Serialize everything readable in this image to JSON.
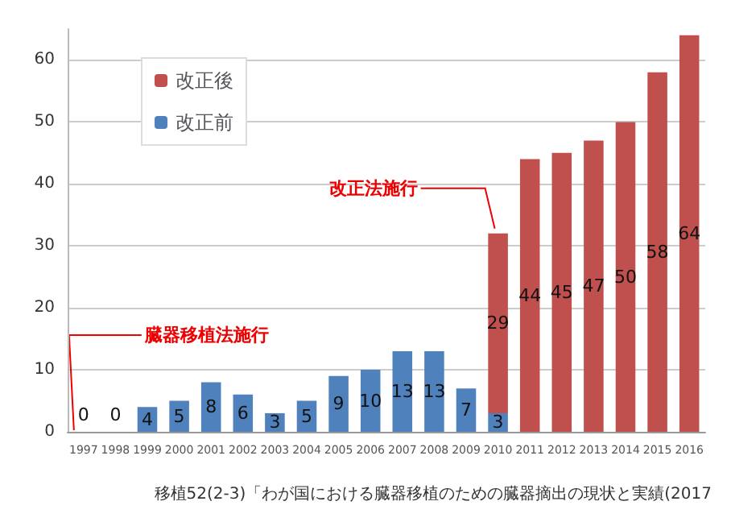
{
  "chart_data": {
    "type": "bar",
    "stacked": true,
    "categories": [
      "1997",
      "1998",
      "1999",
      "2000",
      "2001",
      "2002",
      "2003",
      "2004",
      "2005",
      "2006",
      "2007",
      "2008",
      "2009",
      "2010",
      "2011",
      "2012",
      "2013",
      "2014",
      "2015",
      "2016"
    ],
    "series": [
      {
        "name": "改正前",
        "color": "#4f81bd",
        "values": [
          0,
          0,
          4,
          5,
          8,
          6,
          3,
          5,
          9,
          10,
          13,
          13,
          7,
          3,
          0,
          0,
          0,
          0,
          0,
          0
        ],
        "value_labels": [
          "0",
          "0",
          "4",
          "5",
          "8",
          "6",
          "3",
          "5",
          "9",
          "10",
          "13",
          "13",
          "7",
          "3",
          null,
          null,
          null,
          null,
          null,
          null
        ]
      },
      {
        "name": "改正後",
        "color": "#c0504d",
        "values": [
          0,
          0,
          0,
          0,
          0,
          0,
          0,
          0,
          0,
          0,
          0,
          0,
          0,
          29,
          44,
          45,
          47,
          50,
          58,
          64
        ],
        "value_labels": [
          null,
          null,
          null,
          null,
          null,
          null,
          null,
          null,
          null,
          null,
          null,
          null,
          null,
          "29",
          "44",
          "45",
          "47",
          "50",
          "58",
          "64"
        ]
      }
    ],
    "ylim": [
      0,
      65
    ],
    "yticks": [
      0,
      10,
      20,
      30,
      40,
      50,
      60
    ],
    "grid": "y",
    "legend": "top left",
    "annotations": [
      {
        "text": "改正法施行",
        "x": "2010",
        "y": 32
      },
      {
        "text": "臓器移植法施行",
        "x": "1997",
        "y": 0
      },
      "移植52(2-3)「わが国における臓器移植のための臓器摘出の現状と実績(2017"
    ]
  }
}
